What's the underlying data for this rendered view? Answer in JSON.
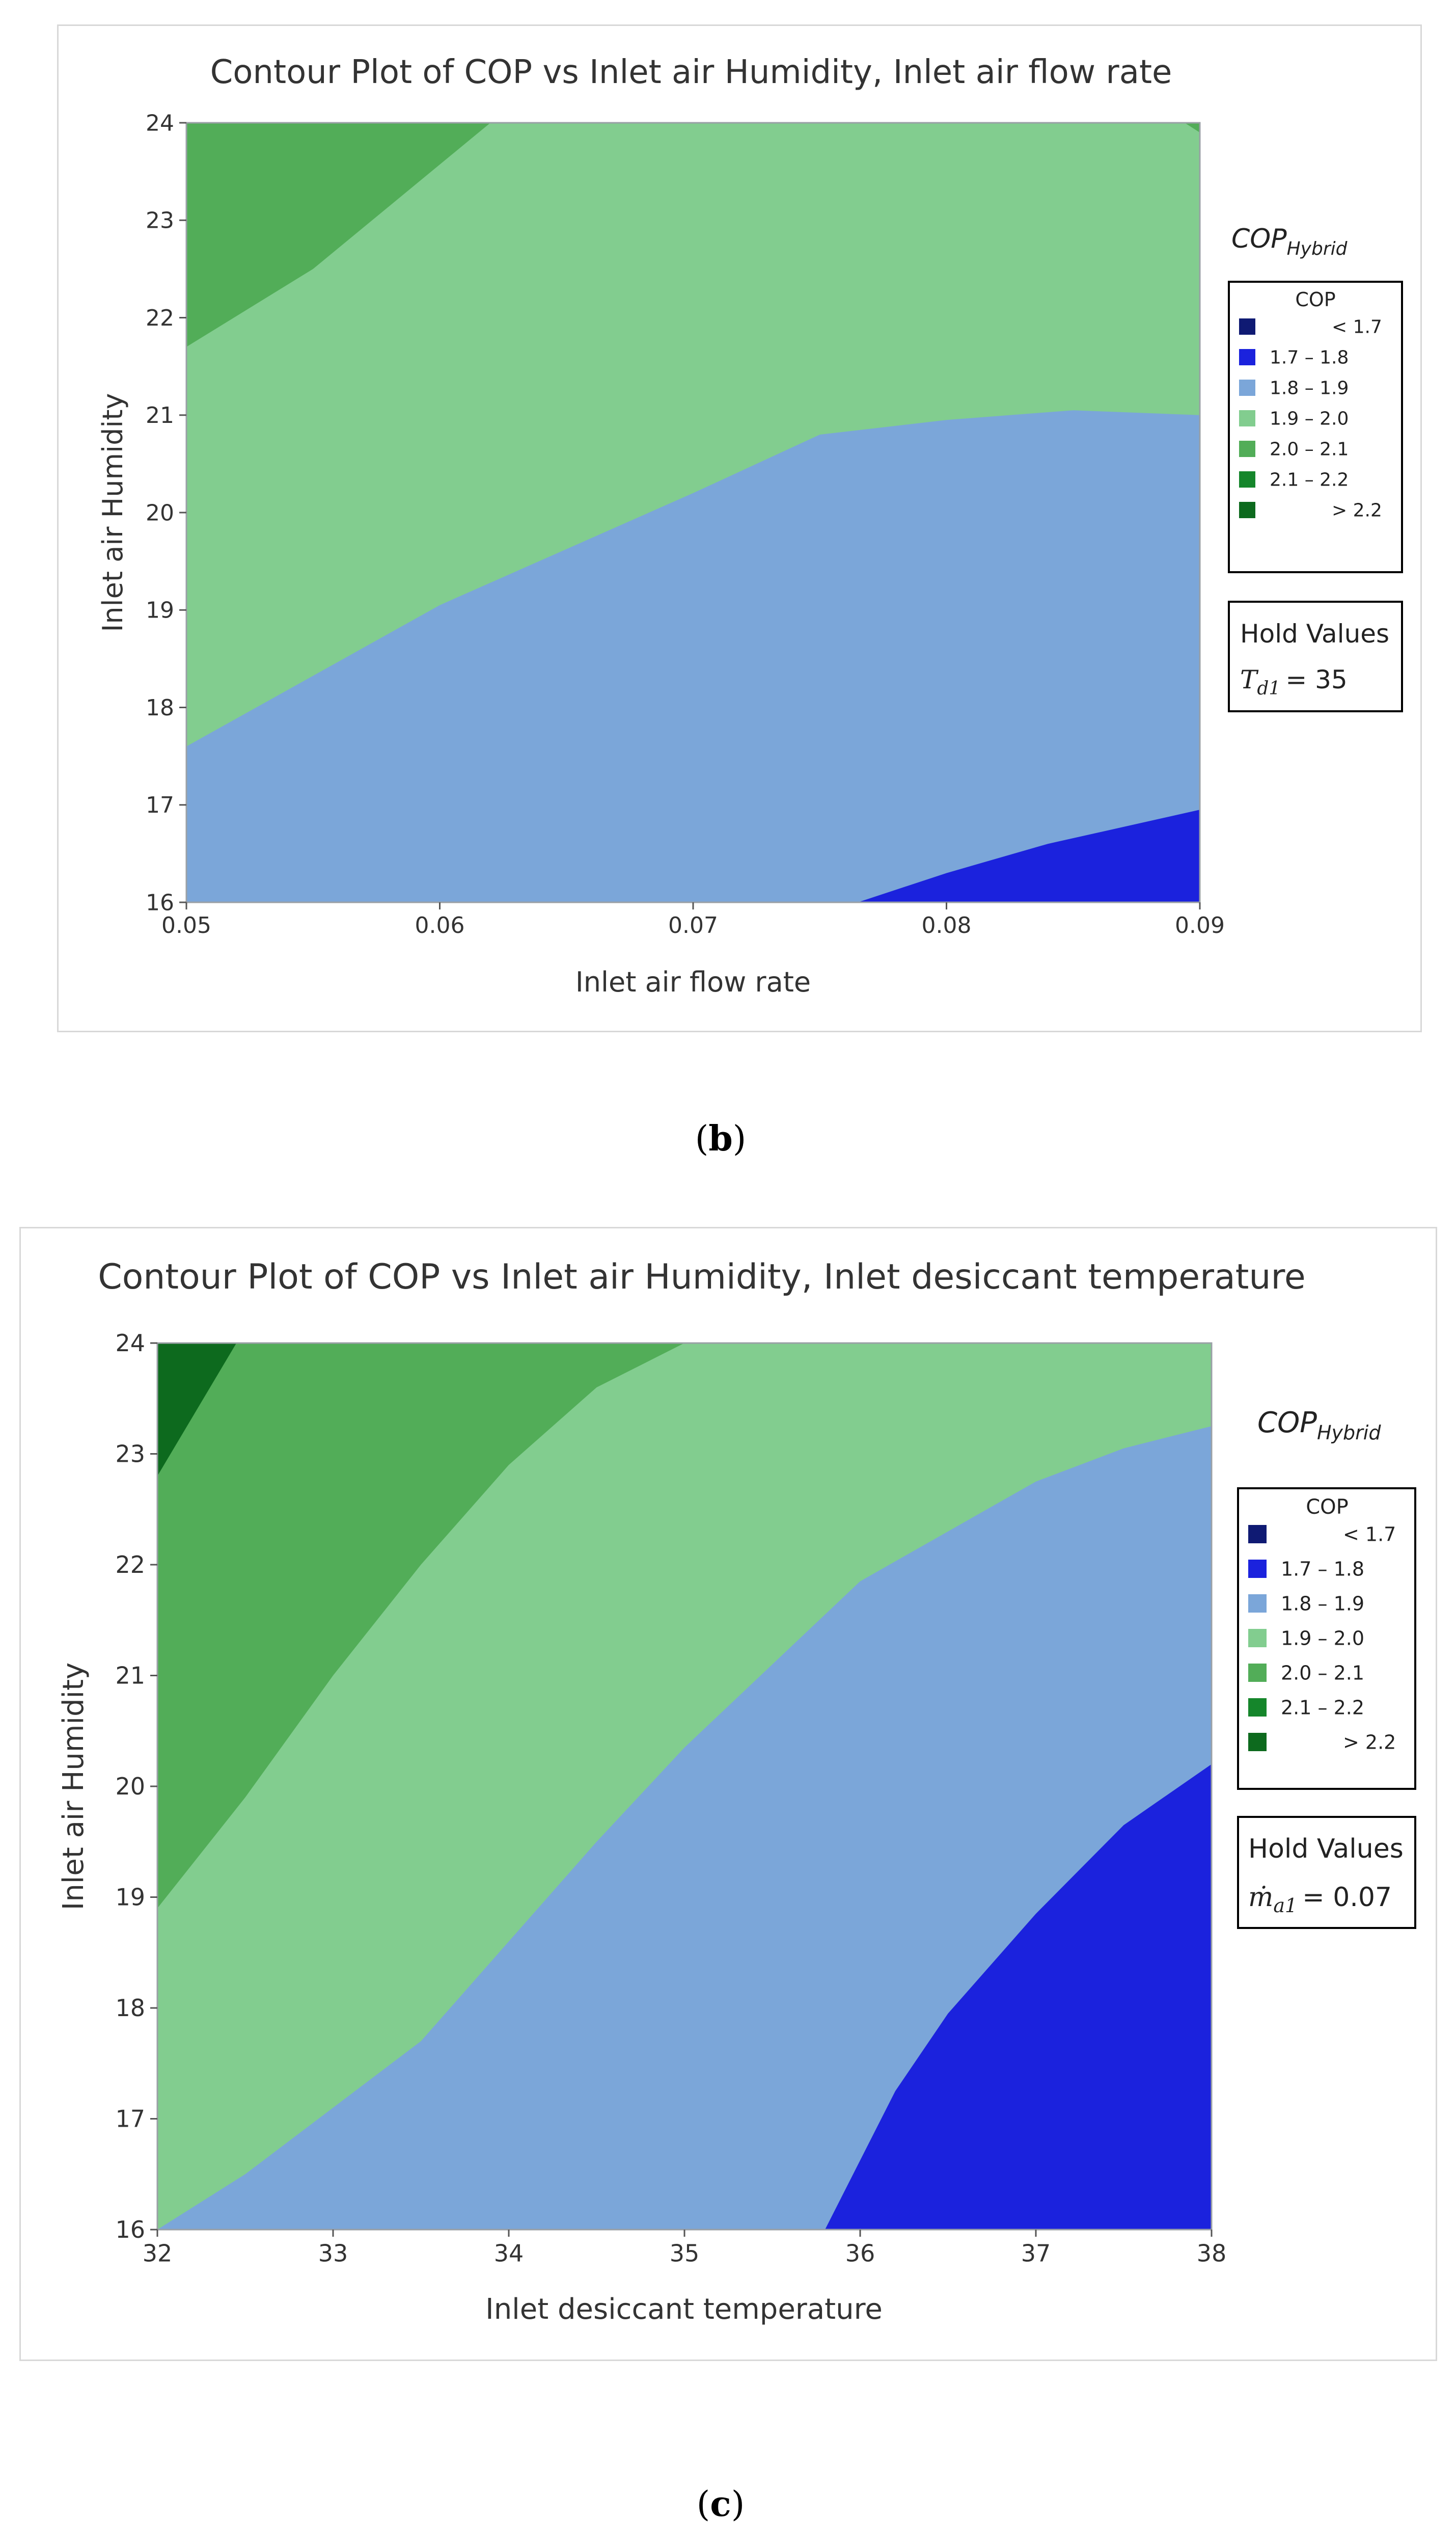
{
  "captions": {
    "b": "b",
    "c": "c"
  },
  "chart_data": [
    {
      "id": "b",
      "type": "contour",
      "title": "Contour Plot of COP vs Inlet air Humidity, Inlet air flow rate",
      "xlabel": "Inlet air flow rate",
      "ylabel": "Inlet air Humidity",
      "xlim": [
        0.05,
        0.09
      ],
      "ylim": [
        16,
        24
      ],
      "xticks": [
        "0.05",
        "0.06",
        "0.07",
        "0.08",
        "0.09"
      ],
      "yticks": [
        "16",
        "17",
        "18",
        "19",
        "20",
        "21",
        "22",
        "23",
        "24"
      ],
      "legend_title": "COP",
      "legend_heading": {
        "base": "COP",
        "sub": "Hybrid"
      },
      "legend": [
        {
          "range": "<   1.7",
          "color": "#0f1a73"
        },
        {
          "range": "1.7  –   1.8",
          "color": "#1b22dd"
        },
        {
          "range": "1.8  –   1.9",
          "color": "#7ba6d9"
        },
        {
          "range": "1.9  –   2.0",
          "color": "#82cd8f"
        },
        {
          "range": "2.0  –   2.1",
          "color": "#52ad58"
        },
        {
          "range": "2.1  –   2.2",
          "color": "#15862b"
        },
        {
          "range": ">   2.2",
          "color": "#0d6a1e"
        }
      ],
      "hold_title": "Hold Values",
      "hold": {
        "base": "T",
        "sub": "d1",
        "value": "= 35"
      },
      "regions": [
        {
          "level": "1.8 – 1.9",
          "color": "#7ba6d9",
          "points": [
            [
              0.05,
              16
            ],
            [
              0.09,
              16
            ],
            [
              0.09,
              21
            ],
            [
              0.085,
              21.05
            ],
            [
              0.08,
              20.95
            ],
            [
              0.075,
              20.8
            ],
            [
              0.07,
              20.2
            ],
            [
              0.06,
              19.05
            ],
            [
              0.05,
              17.6
            ]
          ]
        },
        {
          "level": "1.7 – 1.8",
          "color": "#1b22dd",
          "points": [
            [
              0.0765,
              16
            ],
            [
              0.09,
              16
            ],
            [
              0.09,
              16.95
            ],
            [
              0.084,
              16.6
            ],
            [
              0.08,
              16.3
            ]
          ]
        },
        {
          "level": "2.0 – 2.1",
          "color": "#52ad58",
          "points": [
            [
              0.05,
              21.7
            ],
            [
              0.055,
              22.5
            ],
            [
              0.062,
              24
            ],
            [
              0.05,
              24
            ]
          ]
        },
        {
          "level": "2.0 – 2.1",
          "color": "#52ad58",
          "points": [
            [
              0.0894,
              24
            ],
            [
              0.09,
              24
            ],
            [
              0.09,
              23.9
            ]
          ]
        }
      ]
    },
    {
      "id": "c",
      "type": "contour",
      "title": "Contour Plot of COP vs Inlet air Humidity, Inlet desiccant temperature",
      "xlabel": "Inlet desiccant temperature",
      "ylabel": "Inlet air Humidity",
      "xlim": [
        32,
        38
      ],
      "ylim": [
        16,
        24
      ],
      "xticks": [
        "32",
        "33",
        "34",
        "35",
        "36",
        "37",
        "38"
      ],
      "yticks": [
        "16",
        "17",
        "18",
        "19",
        "20",
        "21",
        "22",
        "23",
        "24"
      ],
      "legend_title": "COP",
      "legend_heading": {
        "base": "COP",
        "sub": "Hybrid"
      },
      "legend": [
        {
          "range": "<   1.7",
          "color": "#0f1a73"
        },
        {
          "range": "1.7  –   1.8",
          "color": "#1b22dd"
        },
        {
          "range": "1.8  –   1.9",
          "color": "#7ba6d9"
        },
        {
          "range": "1.9  –   2.0",
          "color": "#82cd8f"
        },
        {
          "range": "2.0  –   2.1",
          "color": "#52ad58"
        },
        {
          "range": "2.1  –   2.2",
          "color": "#15862b"
        },
        {
          "range": ">   2.2",
          "color": "#0d6a1e"
        }
      ],
      "hold_title": "Hold Values",
      "hold": {
        "base": "ṁ",
        "sub": "a1",
        "value": "= 0.07"
      },
      "regions": [
        {
          "level": "2.0 – 2.1",
          "color": "#52ad58",
          "points": [
            [
              32,
              18.9
            ],
            [
              32.5,
              19.9
            ],
            [
              33,
              21
            ],
            [
              33.5,
              22
            ],
            [
              34,
              22.9
            ],
            [
              34.5,
              23.6
            ],
            [
              35,
              24
            ],
            [
              32,
              24
            ]
          ]
        },
        {
          "level": "1.8 – 1.9",
          "color": "#7ba6d9",
          "points": [
            [
              32,
              16
            ],
            [
              38,
              16
            ],
            [
              38,
              23.25
            ],
            [
              37.5,
              23.05
            ],
            [
              37,
              22.75
            ],
            [
              36.5,
              22.3
            ],
            [
              36,
              21.85
            ],
            [
              35.5,
              21.1
            ],
            [
              35,
              20.35
            ],
            [
              34.5,
              19.5
            ],
            [
              34,
              18.6
            ],
            [
              33.5,
              17.7
            ],
            [
              33,
              17.1
            ],
            [
              32.5,
              16.5
            ]
          ]
        },
        {
          "level": "1.7 – 1.8",
          "color": "#1b22dd",
          "points": [
            [
              35.8,
              16
            ],
            [
              38,
              16
            ],
            [
              38,
              20.2
            ],
            [
              37.5,
              19.65
            ],
            [
              37,
              18.85
            ],
            [
              36.5,
              17.95
            ],
            [
              36.2,
              17.25
            ]
          ]
        },
        {
          "level": "> 2.2",
          "color": "#0d6a1e",
          "points": [
            [
              32,
              22.8
            ],
            [
              32.45,
              24
            ],
            [
              32,
              24
            ]
          ]
        }
      ]
    }
  ]
}
